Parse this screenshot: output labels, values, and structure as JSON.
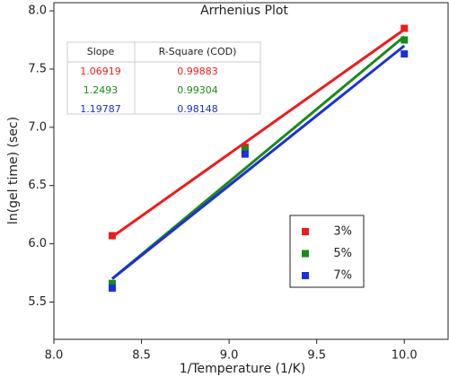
{
  "chart_data": {
    "type": "scatter",
    "title": "Arrhenius Plot",
    "x_label": "1/Temperature (1/K)",
    "y_label": "ln(gel time) (sec)",
    "x": [
      8.333,
      9.091,
      10.0
    ],
    "series": [
      {
        "name": "3%",
        "color": "#ee1c1c",
        "values": [
          6.07,
          6.83,
          7.85
        ],
        "fit": [
          6.06,
          7.84
        ]
      },
      {
        "name": "5%",
        "color": "#1a8a1a",
        "values": [
          5.66,
          6.81,
          7.75
        ],
        "fit": [
          5.7,
          7.78
        ]
      },
      {
        "name": "7%",
        "color": "#1c2fd9",
        "values": [
          5.62,
          6.77,
          7.63
        ],
        "fit": [
          5.7,
          7.7
        ]
      }
    ],
    "xlim": [
      8.0,
      10.25
    ],
    "ylim": [
      5.18,
      8.07
    ],
    "xticks": [
      {
        "value": 8,
        "label": "8.0"
      },
      8.5,
      {
        "value": 9,
        "label": "9.0"
      },
      9.5,
      {
        "value": 10,
        "label": "10.0"
      }
    ],
    "yticks": [
      5.5,
      {
        "value": 6,
        "label": "6.0"
      },
      6.5,
      {
        "value": 7,
        "label": "7.0"
      },
      7.5,
      {
        "value": 8,
        "label": "8.0"
      }
    ],
    "legend": "lower right",
    "table": {
      "columns": [
        "Slope",
        "R-Square (COD)"
      ],
      "rows": [
        [
          "1.06919",
          "0.99883"
        ],
        [
          "1.2493",
          "0.99304"
        ],
        [
          "1.19787",
          "0.98148"
        ]
      ]
    }
  }
}
